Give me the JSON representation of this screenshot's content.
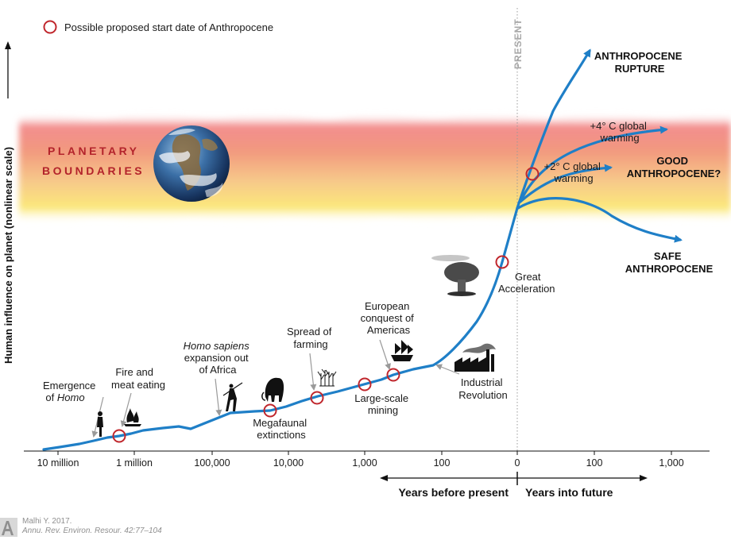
{
  "legend": {
    "label": "Possible proposed start date of Anthropocene"
  },
  "y_axis_label": "Human influence on planet (nonlinear scale)",
  "planetary_boundaries": [
    "PLANETARY",
    "BOUNDARIES"
  ],
  "present_label": "PRESENT",
  "x_ticks": [
    "10 million",
    "1 million",
    "100,000",
    "10,000",
    "1,000",
    "100",
    "0",
    "100",
    "1,000"
  ],
  "timeline_labels": {
    "past": "Years before present",
    "future": "Years into future"
  },
  "events": {
    "emergence": [
      "Emergence",
      "of ",
      "Homo"
    ],
    "fire": [
      "Fire and",
      "meat eating"
    ],
    "homo_sapiens": [
      "Homo sapiens",
      "expansion out",
      "of Africa"
    ],
    "megafaunal": [
      "Megafaunal",
      "extinctions"
    ],
    "farming": [
      "Spread of",
      "farming"
    ],
    "mining": [
      "Large-scale",
      "mining"
    ],
    "european": [
      "European",
      "conquest of",
      "Americas"
    ],
    "industrial": [
      "Industrial",
      "Revolution"
    ],
    "great": [
      "Great",
      "Acceleration"
    ]
  },
  "futures": {
    "rupture": [
      "ANTHROPOCENE",
      "RUPTURE"
    ],
    "warming4": [
      "+4° C global",
      "warming"
    ],
    "warming2": [
      "+2° C global",
      "warming"
    ],
    "good": [
      "GOOD",
      "ANTHROPOCENE?"
    ],
    "safe": [
      "SAFE",
      "ANTHROPOCENE"
    ]
  },
  "citation": {
    "line1": "Malhi Y. 2017.",
    "line2": "Annu. Rev. Environ. Resour. 42:77–104"
  },
  "colors": {
    "curve": "#1f7fc7",
    "marker": "#c0272d",
    "boundary_red": "#e8545a",
    "boundary_yellow": "#fbe76a",
    "boundary_text": "#b3232b"
  }
}
